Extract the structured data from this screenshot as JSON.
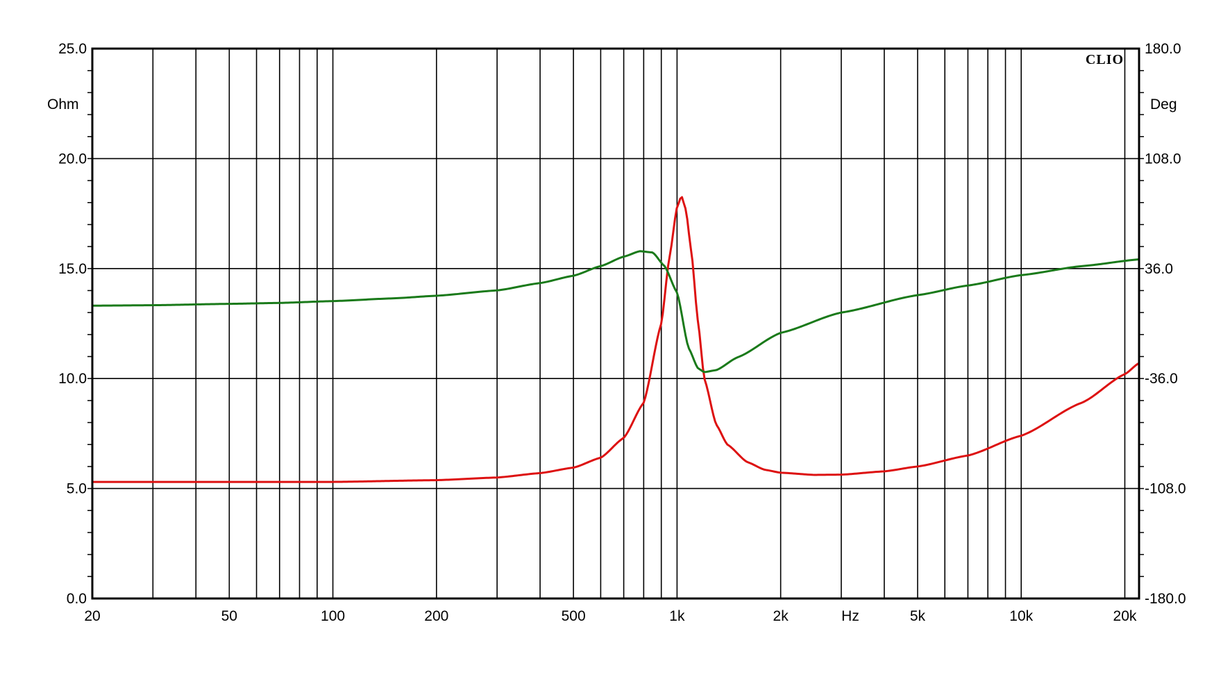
{
  "chart_data": {
    "type": "line",
    "brand": "CLIO",
    "x_unit": "Hz",
    "x_scale": "log",
    "xlim": [
      20,
      22000
    ],
    "x_ticks": [
      {
        "value": 20,
        "label": "20"
      },
      {
        "value": 50,
        "label": "50"
      },
      {
        "value": 100,
        "label": "100"
      },
      {
        "value": 200,
        "label": "200"
      },
      {
        "value": 500,
        "label": "500"
      },
      {
        "value": 1000,
        "label": "1k"
      },
      {
        "value": 2000,
        "label": "2k"
      },
      {
        "value": 5000,
        "label": "5k"
      },
      {
        "value": 10000,
        "label": "10k"
      },
      {
        "value": 20000,
        "label": "20k"
      }
    ],
    "x_gridlines": [
      30,
      40,
      50,
      60,
      70,
      80,
      90,
      100,
      200,
      300,
      400,
      500,
      600,
      700,
      800,
      900,
      1000,
      2000,
      3000,
      4000,
      5000,
      6000,
      7000,
      8000,
      9000,
      10000,
      20000
    ],
    "left_axis": {
      "unit": "Ohm",
      "ylim": [
        0,
        25
      ],
      "ticks": [
        "0.0",
        "5.0",
        "10.0",
        "15.0",
        "20.0",
        "25.0"
      ]
    },
    "right_axis": {
      "unit": "Deg",
      "ylim": [
        -180,
        180
      ],
      "ticks": [
        "-180.0",
        "-108.0",
        "-36.0",
        "36.0",
        "108.0",
        "180.0"
      ]
    },
    "series": [
      {
        "axis": "left",
        "color": "#dd1111",
        "points": [
          [
            20,
            5.3
          ],
          [
            50,
            5.3
          ],
          [
            100,
            5.3
          ],
          [
            200,
            5.38
          ],
          [
            300,
            5.5
          ],
          [
            400,
            5.7
          ],
          [
            500,
            5.95
          ],
          [
            600,
            6.4
          ],
          [
            700,
            7.3
          ],
          [
            800,
            8.9
          ],
          [
            900,
            12.5
          ],
          [
            950,
            15.5
          ],
          [
            1000,
            17.8
          ],
          [
            1030,
            18.3
          ],
          [
            1060,
            17.7
          ],
          [
            1100,
            15.8
          ],
          [
            1150,
            12.6
          ],
          [
            1200,
            10.0
          ],
          [
            1300,
            7.9
          ],
          [
            1400,
            7.0
          ],
          [
            1600,
            6.2
          ],
          [
            1800,
            5.85
          ],
          [
            2000,
            5.72
          ],
          [
            2500,
            5.62
          ],
          [
            3000,
            5.63
          ],
          [
            4000,
            5.78
          ],
          [
            5000,
            6.0
          ],
          [
            7000,
            6.5
          ],
          [
            10000,
            7.4
          ],
          [
            15000,
            8.9
          ],
          [
            20000,
            10.2
          ],
          [
            22000,
            10.7
          ]
        ]
      },
      {
        "axis": "right",
        "color": "#1a7a1a",
        "points": [
          [
            20,
            11.7
          ],
          [
            30,
            12.0
          ],
          [
            50,
            12.9
          ],
          [
            70,
            13.5
          ],
          [
            100,
            14.7
          ],
          [
            150,
            16.5
          ],
          [
            200,
            18.2
          ],
          [
            300,
            21.7
          ],
          [
            400,
            26.5
          ],
          [
            500,
            31.3
          ],
          [
            600,
            37.6
          ],
          [
            700,
            43.8
          ],
          [
            780,
            47.4
          ],
          [
            850,
            46.5
          ],
          [
            920,
            37.6
          ],
          [
            1000,
            20.3
          ],
          [
            1080,
            -16.0
          ],
          [
            1150,
            -29.3
          ],
          [
            1200,
            -31.8
          ],
          [
            1300,
            -30.5
          ],
          [
            1500,
            -22.1
          ],
          [
            2000,
            -6.1
          ],
          [
            3000,
            7.2
          ],
          [
            5000,
            18.6
          ],
          [
            7000,
            24.9
          ],
          [
            10000,
            31.7
          ],
          [
            15000,
            37.6
          ],
          [
            22000,
            42.0
          ]
        ]
      }
    ]
  }
}
